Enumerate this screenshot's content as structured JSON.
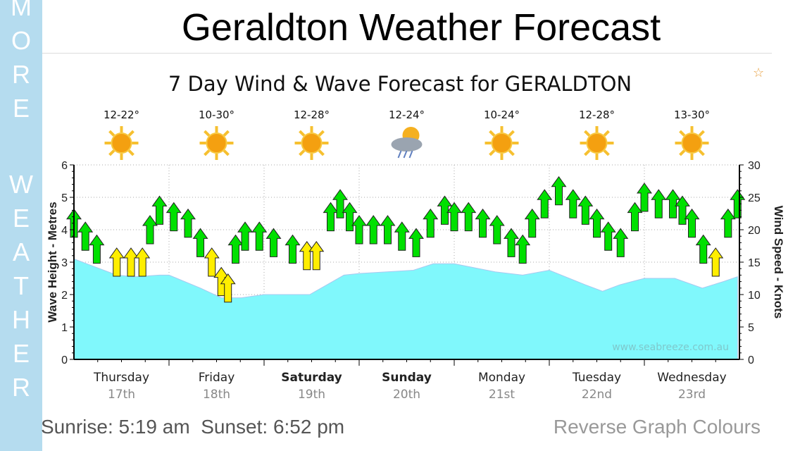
{
  "sidebar": {
    "letters": [
      "M",
      "O",
      "R",
      "E",
      "W",
      "E",
      "A",
      "T",
      "H",
      "E",
      "R"
    ]
  },
  "header": {
    "title": "Geraldton Weather Forecast"
  },
  "chart_data": {
    "type": "area",
    "title": "7 Day Wind & Wave Forecast for GERALDTON",
    "ylabel": "Wave Height - Metres",
    "y2label": "Wind Speed - Knots",
    "ylim": [
      0,
      6
    ],
    "y2lim": [
      0,
      30
    ],
    "yticks": [
      "0",
      "1",
      "2",
      "3",
      "4",
      "5",
      "6"
    ],
    "y2ticks": [
      "0",
      "5",
      "10",
      "15",
      "20",
      "25",
      "30"
    ],
    "watermark": "www.seabreeze.com.au",
    "days": [
      {
        "day": "Thursday",
        "date": "17th",
        "temp": "12-22°",
        "icon": "sun",
        "bold": false
      },
      {
        "day": "Friday",
        "date": "18th",
        "temp": "10-30°",
        "icon": "sun",
        "bold": false
      },
      {
        "day": "Saturday",
        "date": "19th",
        "temp": "12-28°",
        "icon": "sun",
        "bold": true
      },
      {
        "day": "Sunday",
        "date": "20th",
        "temp": "12-24°",
        "icon": "storm",
        "bold": true
      },
      {
        "day": "Monday",
        "date": "21st",
        "temp": "10-24°",
        "icon": "sun",
        "bold": false
      },
      {
        "day": "Tuesday",
        "date": "22nd",
        "temp": "12-28°",
        "icon": "sun",
        "bold": false
      },
      {
        "day": "Wednesday",
        "date": "23rd",
        "temp": "13-30°",
        "icon": "sun",
        "bold": false
      }
    ],
    "wave_series": {
      "name": "Wave Height (m)",
      "x": [
        0,
        0.45,
        0.64,
        0.9,
        1.0,
        1.33,
        1.55,
        1.76,
        2.0,
        2.48,
        2.84,
        3.0,
        3.57,
        3.78,
        4.0,
        4.43,
        4.72,
        5.0,
        5.38,
        5.56,
        5.74,
        6.0,
        6.32,
        6.61,
        6.83,
        6.98
      ],
      "values": [
        3.1,
        2.6,
        2.55,
        2.6,
        2.6,
        2.2,
        1.9,
        1.9,
        2.0,
        2.0,
        2.6,
        2.65,
        2.75,
        2.95,
        2.95,
        2.7,
        2.6,
        2.75,
        2.3,
        2.1,
        2.3,
        2.5,
        2.5,
        2.2,
        2.4,
        2.55
      ]
    },
    "wind_series": {
      "name": "Wind Speed (knots)",
      "x": [
        0,
        0.12,
        0.24,
        0.45,
        0.6,
        0.72,
        0.8,
        0.9,
        1.05,
        1.2,
        1.33,
        1.45,
        1.55,
        1.62,
        1.7,
        1.8,
        1.95,
        2.1,
        2.3,
        2.45,
        2.55,
        2.7,
        2.8,
        2.9,
        3.0,
        3.15,
        3.3,
        3.45,
        3.6,
        3.75,
        3.9,
        4.0,
        4.15,
        4.3,
        4.45,
        4.6,
        4.72,
        4.82,
        4.95,
        5.1,
        5.25,
        5.38,
        5.5,
        5.62,
        5.75,
        5.9,
        6.0,
        6.15,
        6.3,
        6.4,
        6.5,
        6.62,
        6.75,
        6.88,
        6.98
      ],
      "values": [
        21,
        19,
        17,
        15,
        15,
        15,
        20,
        23,
        22,
        21,
        18,
        15,
        12,
        11,
        17,
        19,
        19,
        18,
        17,
        16,
        16,
        22,
        24,
        22,
        20,
        20,
        20,
        19,
        18,
        21,
        23,
        22,
        22,
        21,
        20,
        18,
        17,
        21,
        24,
        26,
        24,
        23,
        21,
        19,
        18,
        22,
        25,
        24,
        24,
        23,
        21,
        17,
        15,
        21,
        24
      ]
    },
    "wind_low_threshold": 17
  },
  "footer": {
    "sun": "Sunrise: 5:19 am  Sunset: 6:52 pm",
    "reverse": "Reverse Graph Colours"
  },
  "colors": {
    "wave": "#80f8fc",
    "wind_ok": "#00e000",
    "wind_low": "#ffee00",
    "sidebar": "#b5dcef"
  }
}
